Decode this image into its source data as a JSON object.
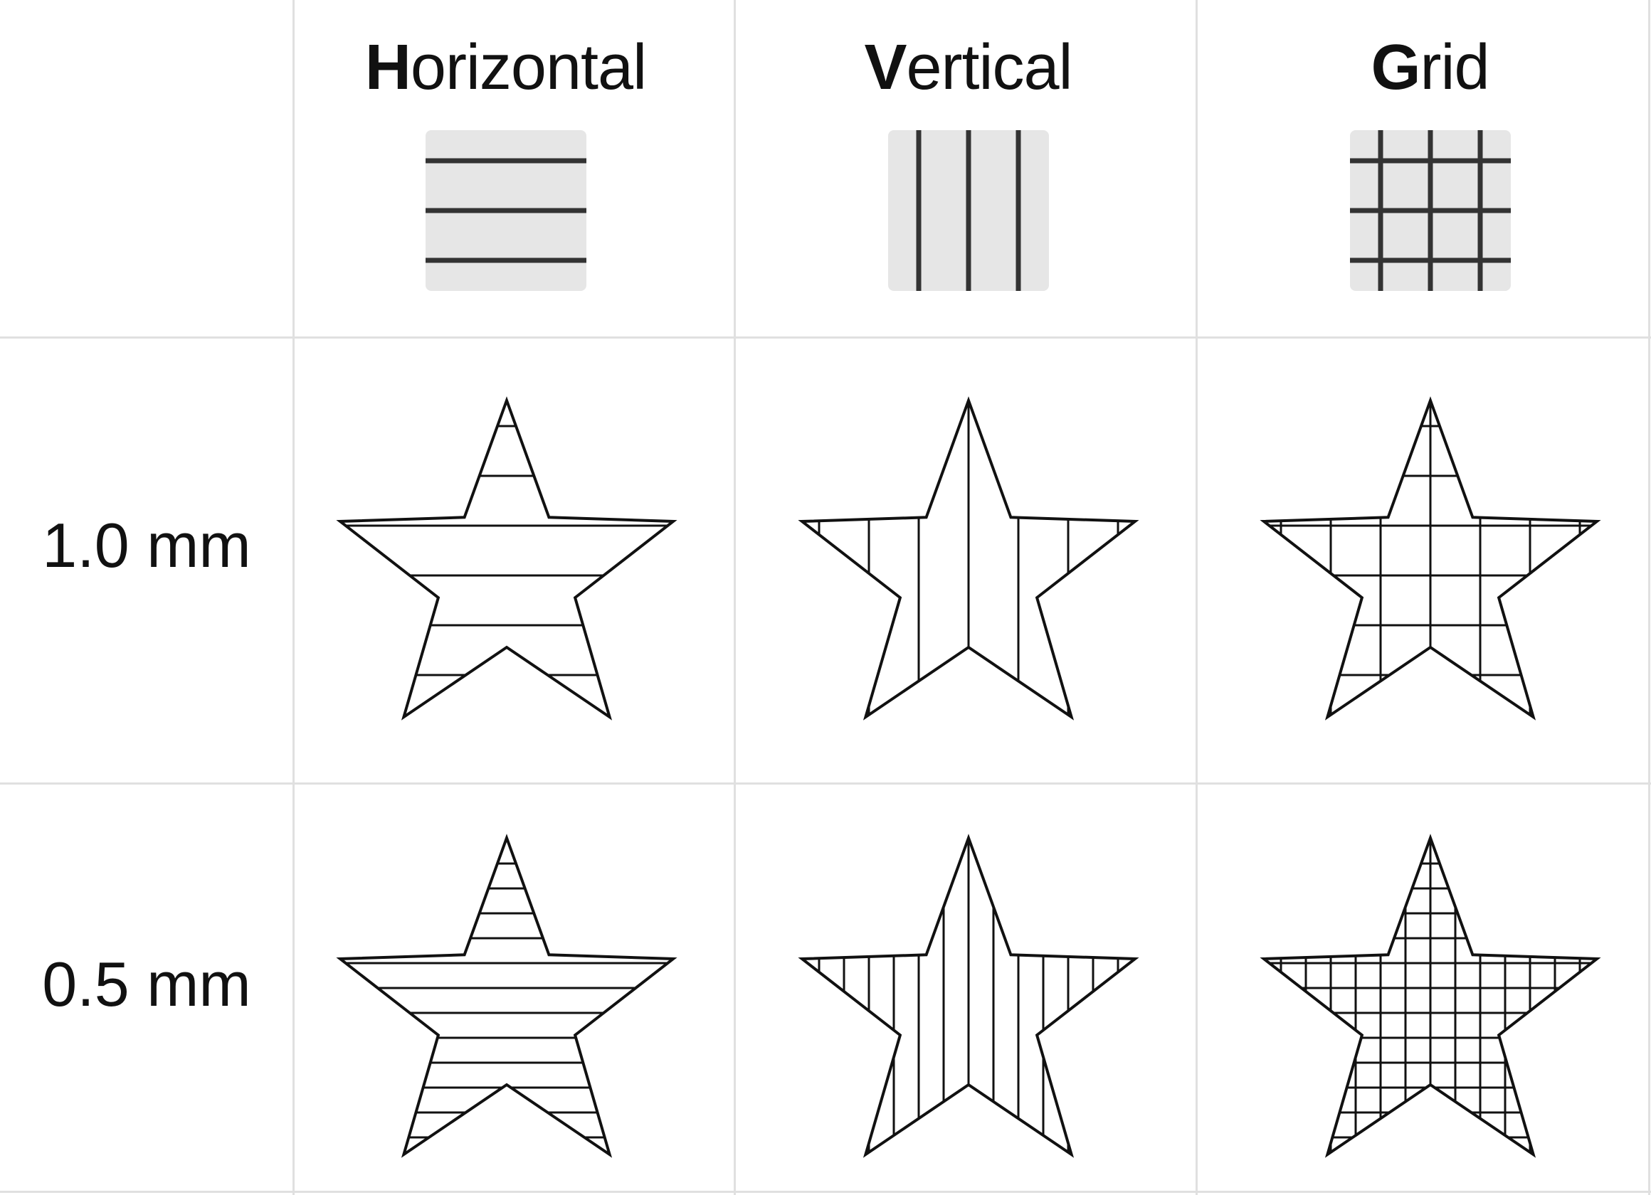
{
  "columns": [
    {
      "key": "horizontal",
      "initial": "H",
      "rest": "orizontal",
      "pattern": "horizontal"
    },
    {
      "key": "vertical",
      "initial": "V",
      "rest": "ertical",
      "pattern": "vertical"
    },
    {
      "key": "grid",
      "initial": "G",
      "rest": "rid",
      "pattern": "grid"
    }
  ],
  "rows": [
    {
      "label": "1.0 mm",
      "spacing_mm": 1.0
    },
    {
      "label": "0.5 mm",
      "spacing_mm": 0.5
    }
  ],
  "colors": {
    "divider": "#e0e0e0",
    "swatch_bg": "#e6e6e6",
    "swatch_line": "#333333",
    "stroke": "#111111"
  }
}
